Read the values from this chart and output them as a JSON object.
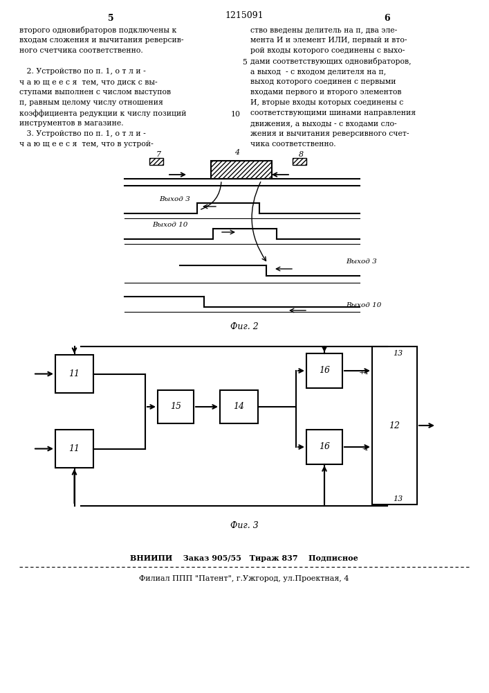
{
  "bg_color": "#ffffff",
  "page_width": 7.07,
  "page_height": 10.0,
  "header": {
    "left_num": "5",
    "center_text": "1215091",
    "right_num": "6"
  },
  "col1_lines": [
    "второго одновибраторов подключены к",
    "входам сложения и вычитания реверсив-",
    "ного счетчика соответственно.",
    "",
    "   2. Устройство по п. 1, о т л и -",
    "ч а ю щ е е с я  тем, что диск с вы-",
    "ступами выполнен с числом выступов",
    "п, равным целому числу отношения",
    "коэффициента редукции к числу позиций",
    "инструментов в магазине.",
    "   3. Устройство по п. 1, о т л и -",
    "ч а ю щ е е с я  тем, что в устрой-"
  ],
  "col2_lines": [
    "ство введены делитель на п, два эле-",
    "мента И и элемент ИЛИ, первый и вто-",
    "рой входы которого соединены с выхо-",
    "дами соответствующих одновибраторов,",
    "а выход  - с входом делителя на п,",
    "выход которого соединен с первыми",
    "входами первого и второго элементов",
    "И, вторые входы которых соединены с",
    "соответствующими шинами направления",
    "движения, а выходы - с входами сло-",
    "жения и вычитания реверсивного счет-",
    "чика соответственно."
  ],
  "fig2_label": "Фиг. 2",
  "fig3_label": "Фиг. 3",
  "footer_line1": "ВНИИПИ    Заказ 905/55   Тираж 837    Подписное",
  "footer_line2": "Филиал ППП \"Патент\", г.Ужгород, ул.Проектная, 4"
}
